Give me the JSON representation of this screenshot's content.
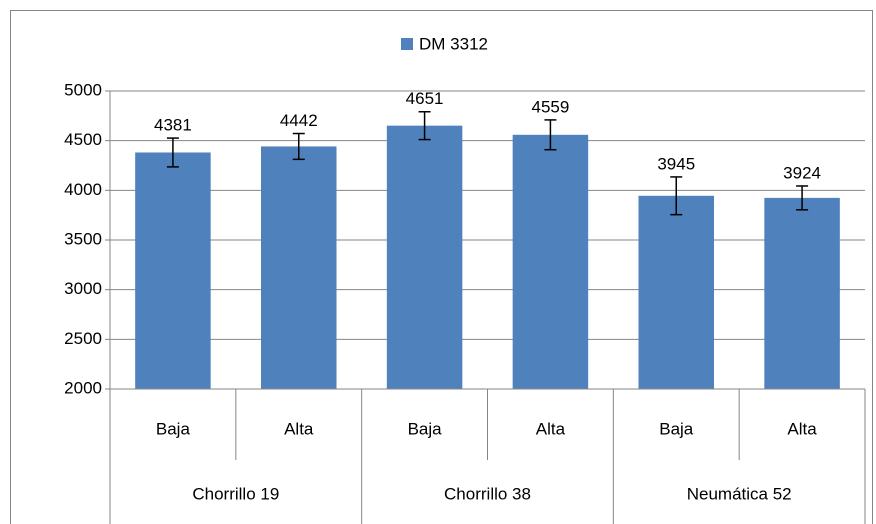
{
  "chart_data": {
    "type": "bar",
    "groups": [
      {
        "name": "Chorrillo 19",
        "categories": [
          "Baja",
          "Alta"
        ]
      },
      {
        "name": "Chorrillo 38",
        "categories": [
          "Baja",
          "Alta"
        ]
      },
      {
        "name": "Neumática 52",
        "categories": [
          "Baja",
          "Alta"
        ]
      }
    ],
    "series": [
      {
        "name": "DM 3312",
        "color": "#4f81bd",
        "values": [
          4381,
          4442,
          4651,
          4559,
          3945,
          3924
        ],
        "errors": [
          145,
          130,
          140,
          150,
          190,
          120
        ]
      }
    ],
    "ylim": [
      2000,
      5000
    ],
    "yticks": [
      2000,
      2500,
      3000,
      3500,
      4000,
      4500,
      5000
    ],
    "grid": true,
    "legend": "top"
  }
}
